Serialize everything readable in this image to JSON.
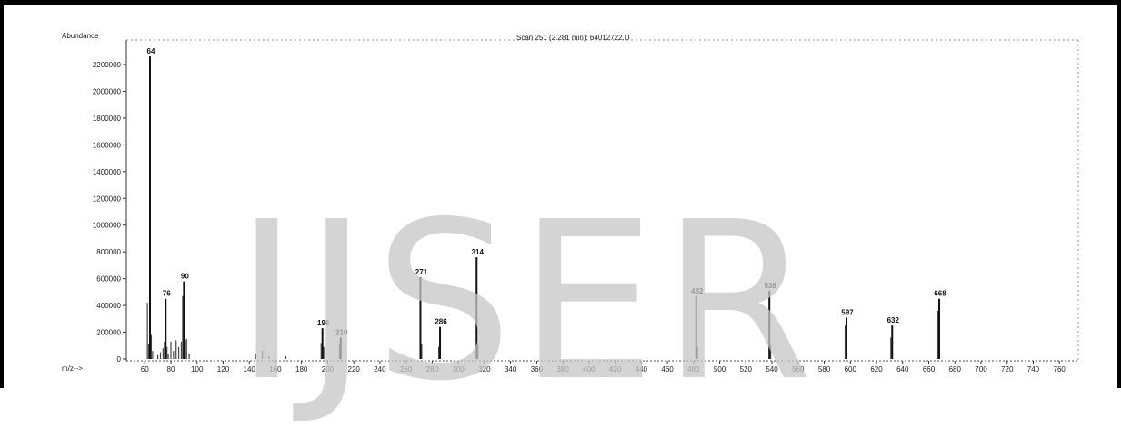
{
  "watermark": "IJSER",
  "chart_data": {
    "type": "bar",
    "title": "Scan 251 (2.281 min): 64012722.D",
    "ylabel": "Abundance",
    "xlabel": "m/z-->",
    "xlim": [
      50,
      765
    ],
    "ylim": [
      0,
      2350000
    ],
    "y_ticks": [
      0,
      200000,
      400000,
      600000,
      800000,
      1000000,
      1200000,
      1400000,
      1600000,
      1800000,
      2000000,
      2200000
    ],
    "y_tick_labels": [
      "0",
      "200000",
      "400000",
      "600000",
      "800000",
      "1000000",
      "1200000",
      "1400000",
      "1600000",
      "1800000",
      "2000000",
      "2200000"
    ],
    "x_ticks": [
      60,
      80,
      100,
      120,
      140,
      160,
      180,
      200,
      220,
      240,
      260,
      280,
      300,
      320,
      340,
      360,
      380,
      400,
      420,
      440,
      460,
      480,
      500,
      520,
      540,
      560,
      580,
      600,
      620,
      640,
      660,
      680,
      700,
      720,
      740,
      760
    ],
    "x_tick_labels": [
      "60",
      "80",
      "100",
      "120",
      "140",
      "160",
      "180",
      "200",
      "220",
      "240",
      "260",
      "280",
      "300",
      "320",
      "340",
      "360",
      "380",
      "400",
      "420",
      "440",
      "460",
      "480",
      "500",
      "520",
      "540",
      "560",
      "580",
      "600",
      "620",
      "640",
      "660",
      "680",
      "700",
      "720",
      "740",
      "760"
    ],
    "labeled_peaks": [
      {
        "mz": 64,
        "abundance": 2260000,
        "label": "64"
      },
      {
        "mz": 76,
        "abundance": 450000,
        "label": "76"
      },
      {
        "mz": 90,
        "abundance": 580000,
        "label": "90"
      },
      {
        "mz": 196,
        "abundance": 230000,
        "label": "196"
      },
      {
        "mz": 210,
        "abundance": 160000,
        "label": "210"
      },
      {
        "mz": 271,
        "abundance": 610000,
        "label": "271"
      },
      {
        "mz": 286,
        "abundance": 240000,
        "label": "286"
      },
      {
        "mz": 314,
        "abundance": 760000,
        "label": "314"
      },
      {
        "mz": 482,
        "abundance": 470000,
        "label": "482"
      },
      {
        "mz": 538,
        "abundance": 510000,
        "label": "538"
      },
      {
        "mz": 597,
        "abundance": 310000,
        "label": "597"
      },
      {
        "mz": 632,
        "abundance": 250000,
        "label": "632"
      },
      {
        "mz": 668,
        "abundance": 450000,
        "label": "668"
      }
    ],
    "minor_peaks": [
      {
        "mz": 62,
        "abundance": 420000
      },
      {
        "mz": 63,
        "abundance": 110000
      },
      {
        "mz": 65,
        "abundance": 180000
      },
      {
        "mz": 66,
        "abundance": 60000
      },
      {
        "mz": 70,
        "abundance": 30000
      },
      {
        "mz": 72,
        "abundance": 50000
      },
      {
        "mz": 74,
        "abundance": 80000
      },
      {
        "mz": 75,
        "abundance": 130000
      },
      {
        "mz": 77,
        "abundance": 90000
      },
      {
        "mz": 78,
        "abundance": 40000
      },
      {
        "mz": 80,
        "abundance": 130000
      },
      {
        "mz": 82,
        "abundance": 60000
      },
      {
        "mz": 84,
        "abundance": 140000
      },
      {
        "mz": 86,
        "abundance": 90000
      },
      {
        "mz": 88,
        "abundance": 130000
      },
      {
        "mz": 89,
        "abundance": 470000
      },
      {
        "mz": 91,
        "abundance": 140000
      },
      {
        "mz": 92,
        "abundance": 150000
      },
      {
        "mz": 94,
        "abundance": 40000
      },
      {
        "mz": 145,
        "abundance": 40000
      },
      {
        "mz": 150,
        "abundance": 60000
      },
      {
        "mz": 152,
        "abundance": 80000
      },
      {
        "mz": 155,
        "abundance": 20000
      },
      {
        "mz": 168,
        "abundance": 20000
      },
      {
        "mz": 195,
        "abundance": 120000
      },
      {
        "mz": 197,
        "abundance": 90000
      },
      {
        "mz": 209,
        "abundance": 110000
      },
      {
        "mz": 272,
        "abundance": 110000
      },
      {
        "mz": 285,
        "abundance": 90000
      },
      {
        "mz": 315,
        "abundance": 120000
      },
      {
        "mz": 483,
        "abundance": 90000
      },
      {
        "mz": 539,
        "abundance": 100000
      },
      {
        "mz": 596,
        "abundance": 250000
      },
      {
        "mz": 631,
        "abundance": 160000
      },
      {
        "mz": 667,
        "abundance": 360000
      }
    ],
    "grid": false
  }
}
